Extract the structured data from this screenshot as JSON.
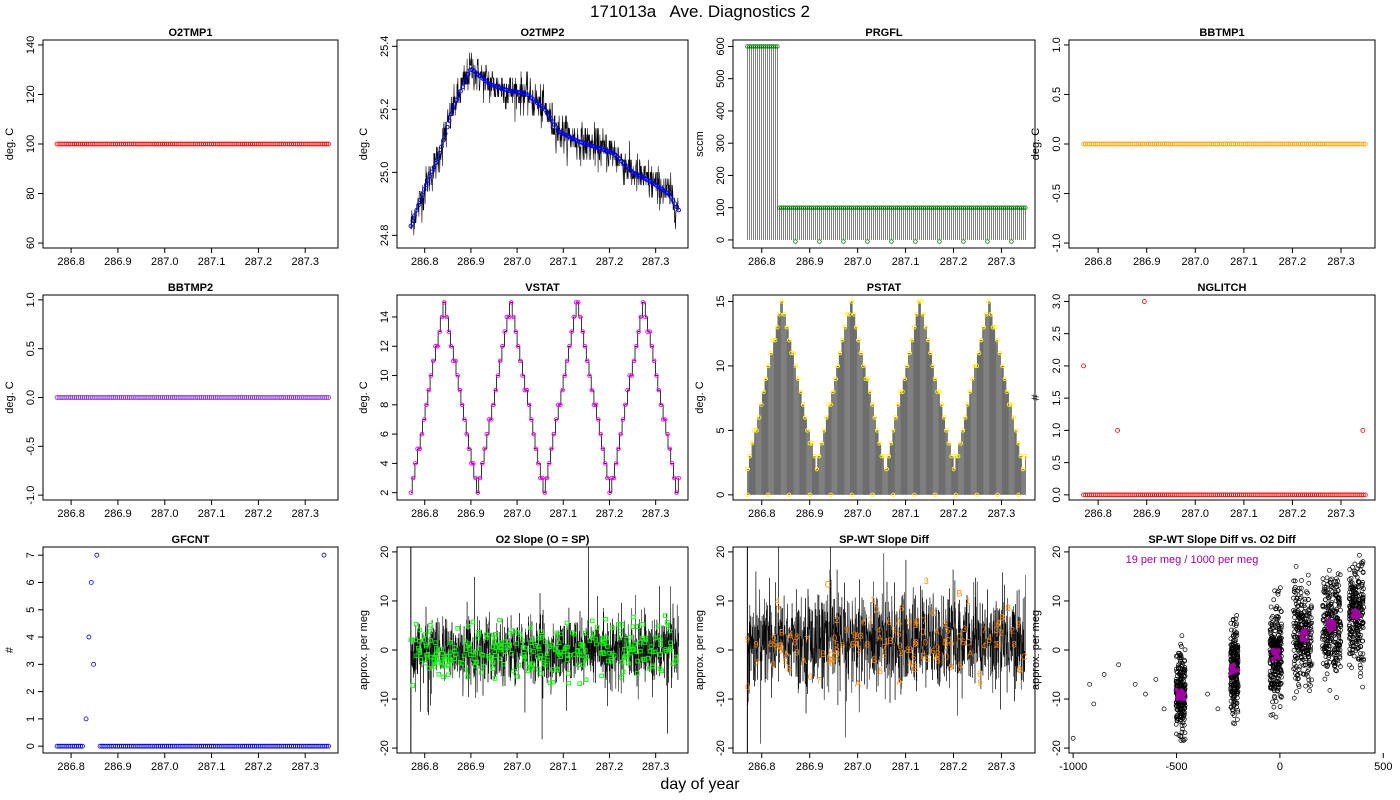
{
  "figure": {
    "title": "171013a   Ave. Diagnostics 2",
    "xlabel": "day of year"
  },
  "chart_data": [
    {
      "id": "o2tmp1",
      "type": "scatter",
      "title": "O2TMP1",
      "ylabel": "deg. C",
      "xlim": [
        286.74,
        287.37
      ],
      "ylim": [
        58,
        142
      ],
      "xticks": [
        286.8,
        286.9,
        287.0,
        287.1,
        287.2,
        287.3
      ],
      "xtick_labels": [
        "286.8",
        "286.9",
        "287.0",
        "287.1",
        "287.2",
        "287.3"
      ],
      "yticks": [
        60,
        80,
        100,
        120,
        140
      ],
      "ytick_labels": [
        "60",
        "80",
        "100",
        "120",
        "140"
      ],
      "series": [
        {
          "color": "#ff0000",
          "points": {
            "x_range": [
              286.77,
              287.35
            ],
            "n": 140,
            "y": 100
          }
        }
      ]
    },
    {
      "id": "o2tmp2",
      "type": "line",
      "title": "O2TMP2",
      "ylabel": "deg. C",
      "xlim": [
        286.74,
        287.37
      ],
      "ylim": [
        24.76,
        25.42
      ],
      "xticks": [
        286.8,
        286.9,
        287.0,
        287.1,
        287.2,
        287.3
      ],
      "xtick_labels": [
        "286.8",
        "286.9",
        "287.0",
        "287.1",
        "287.2",
        "287.3"
      ],
      "yticks": [
        24.8,
        25.0,
        25.2,
        25.4
      ],
      "ytick_labels": [
        "24.8",
        "25.0",
        "25.2",
        "25.4"
      ],
      "series": [
        {
          "color": "#0000ff",
          "profile": [
            [
              286.77,
              24.83
            ],
            [
              286.8,
              24.95
            ],
            [
              286.83,
              25.05
            ],
            [
              286.86,
              25.2
            ],
            [
              286.9,
              25.33
            ],
            [
              286.94,
              25.28
            ],
            [
              286.98,
              25.26
            ],
            [
              287.02,
              25.25
            ],
            [
              287.06,
              25.2
            ],
            [
              287.09,
              25.13
            ],
            [
              287.13,
              25.1
            ],
            [
              287.17,
              25.08
            ],
            [
              287.21,
              25.06
            ],
            [
              287.25,
              25.0
            ],
            [
              287.29,
              24.97
            ],
            [
              287.33,
              24.93
            ],
            [
              287.35,
              24.88
            ]
          ],
          "noise": 0.03
        }
      ]
    },
    {
      "id": "prgfl",
      "type": "bar",
      "title": "PRGFL",
      "ylabel": "sccm",
      "xlim": [
        286.74,
        287.37
      ],
      "ylim": [
        -25,
        620
      ],
      "xticks": [
        286.8,
        286.9,
        287.0,
        287.1,
        287.2,
        287.3
      ],
      "xtick_labels": [
        "286.8",
        "286.9",
        "287.0",
        "287.1",
        "287.2",
        "287.3"
      ],
      "yticks": [
        0,
        100,
        200,
        300,
        400,
        500,
        600
      ],
      "ytick_labels": [
        "0",
        "100",
        "200",
        "300",
        "400",
        "500",
        "600"
      ],
      "series": [
        {
          "color": "#008000",
          "segments": [
            {
              "x": [
                286.77,
                286.835
              ],
              "y": 600
            },
            {
              "x": [
                286.835,
                287.35
              ],
              "y": 100
            }
          ]
        }
      ]
    },
    {
      "id": "bbtmp1",
      "type": "scatter",
      "title": "BBTMP1",
      "ylabel": "deg. C",
      "xlim": [
        286.74,
        287.37
      ],
      "ylim": [
        -1.05,
        1.05
      ],
      "xticks": [
        286.8,
        286.9,
        287.0,
        287.1,
        287.2,
        287.3
      ],
      "xtick_labels": [
        "286.8",
        "286.9",
        "287.0",
        "287.1",
        "287.2",
        "287.3"
      ],
      "yticks": [
        -1.0,
        -0.5,
        0.0,
        0.5,
        1.0
      ],
      "ytick_labels": [
        "-1.0",
        "-0.5",
        "0.0",
        "0.5",
        "1.0"
      ],
      "series": [
        {
          "color": "#ffa500",
          "points": {
            "x_range": [
              286.77,
              287.35
            ],
            "n": 140,
            "y": 0
          }
        }
      ]
    },
    {
      "id": "bbtmp2",
      "type": "scatter",
      "title": "BBTMP2",
      "ylabel": "deg. C",
      "xlim": [
        286.74,
        287.37
      ],
      "ylim": [
        -1.05,
        1.05
      ],
      "xticks": [
        286.8,
        286.9,
        287.0,
        287.1,
        287.2,
        287.3
      ],
      "xtick_labels": [
        "286.8",
        "286.9",
        "287.0",
        "287.1",
        "287.2",
        "287.3"
      ],
      "yticks": [
        -1.0,
        -0.5,
        0.0,
        0.5,
        1.0
      ],
      "ytick_labels": [
        "-1.0",
        "-0.5",
        "0.0",
        "0.5",
        "1.0"
      ],
      "series": [
        {
          "color": "#8a2be2",
          "points": {
            "x_range": [
              286.77,
              287.35
            ],
            "n": 140,
            "y": 0
          }
        }
      ]
    },
    {
      "id": "vstat",
      "type": "line",
      "title": "VSTAT",
      "ylabel": "deg. C",
      "xlim": [
        286.74,
        287.37
      ],
      "ylim": [
        1.5,
        15.5
      ],
      "xticks": [
        286.8,
        286.9,
        287.0,
        287.1,
        287.2,
        287.3
      ],
      "xtick_labels": [
        "286.8",
        "286.9",
        "287.0",
        "287.1",
        "287.2",
        "287.3"
      ],
      "yticks": [
        2,
        4,
        6,
        8,
        10,
        12,
        14
      ],
      "ytick_labels": [
        "2",
        "4",
        "6",
        "8",
        "10",
        "12",
        "14"
      ],
      "series": [
        {
          "color": "#ff00ff",
          "triangle": {
            "x_start": 286.77,
            "x_end": 287.35,
            "min": 2,
            "max": 15,
            "period": 0.144,
            "peaks": [
              286.842,
              286.986,
              287.13,
              287.274
            ]
          }
        }
      ]
    },
    {
      "id": "pstat",
      "type": "bar",
      "title": "PSTAT",
      "ylabel": "deg. C",
      "xlim": [
        286.74,
        287.37
      ],
      "ylim": [
        -0.4,
        15.5
      ],
      "xticks": [
        286.8,
        286.9,
        287.0,
        287.1,
        287.2,
        287.3
      ],
      "xtick_labels": [
        "286.8",
        "286.9",
        "287.0",
        "287.1",
        "287.2",
        "287.3"
      ],
      "yticks": [
        0,
        5,
        10,
        15
      ],
      "ytick_labels": [
        "0",
        "5",
        "10",
        "15"
      ],
      "series": [
        {
          "color": "#ffff00",
          "triangle": {
            "x_start": 286.77,
            "x_end": 287.35,
            "min": 2,
            "max": 15,
            "period": 0.144,
            "peaks": [
              286.842,
              286.986,
              287.13,
              287.274
            ]
          }
        }
      ]
    },
    {
      "id": "nglitch",
      "type": "scatter",
      "title": "NGLITCH",
      "ylabel": "#",
      "xlim": [
        286.74,
        287.37
      ],
      "ylim": [
        -0.08,
        3.1
      ],
      "xticks": [
        286.8,
        286.9,
        287.0,
        287.1,
        287.2,
        287.3
      ],
      "xtick_labels": [
        "286.8",
        "286.9",
        "287.0",
        "287.1",
        "287.2",
        "287.3"
      ],
      "yticks": [
        0.0,
        0.5,
        1.0,
        1.5,
        2.0,
        2.5,
        3.0
      ],
      "ytick_labels": [
        "0.0",
        "0.5",
        "1.0",
        "1.5",
        "2.0",
        "2.5",
        "3.0"
      ],
      "series": [
        {
          "color": "#ff0000",
          "points": {
            "x_range": [
              286.77,
              287.35
            ],
            "n": 140,
            "y": 0
          },
          "outliers": [
            [
              286.77,
              2
            ],
            [
              286.84,
              1
            ],
            [
              286.895,
              3
            ],
            [
              287.345,
              1
            ]
          ]
        }
      ]
    },
    {
      "id": "gfcnt",
      "type": "scatter",
      "title": "GFCNT",
      "ylabel": "#",
      "xlim": [
        286.74,
        287.37
      ],
      "ylim": [
        -0.25,
        7.3
      ],
      "xticks": [
        286.8,
        286.9,
        287.0,
        287.1,
        287.2,
        287.3
      ],
      "xtick_labels": [
        "286.8",
        "286.9",
        "287.0",
        "287.1",
        "287.2",
        "287.3"
      ],
      "yticks": [
        0,
        1,
        2,
        3,
        4,
        5,
        6,
        7
      ],
      "ytick_labels": [
        "0",
        "1",
        "2",
        "3",
        "4",
        "5",
        "6",
        "7"
      ],
      "series": [
        {
          "color": "#0000ff",
          "points": {
            "x_range": [
              286.77,
              287.35
            ],
            "n": 140,
            "y": 0
          },
          "outliers": [
            [
              286.832,
              1
            ],
            [
              286.838,
              4
            ],
            [
              286.843,
              6
            ],
            [
              286.848,
              3
            ],
            [
              286.855,
              7
            ],
            [
              287.34,
              7
            ]
          ]
        }
      ]
    },
    {
      "id": "o2slope",
      "type": "line",
      "title": "O2 Slope (O = SP)",
      "ylabel": "approx. per meg",
      "xlim": [
        286.74,
        287.37
      ],
      "ylim": [
        -21,
        21
      ],
      "xticks": [
        286.8,
        286.9,
        287.0,
        287.1,
        287.2,
        287.3
      ],
      "xtick_labels": [
        "286.8",
        "286.9",
        "287.0",
        "287.1",
        "287.2",
        "287.3"
      ],
      "yticks": [
        -20,
        -10,
        0,
        10,
        20
      ],
      "ytick_labels": [
        "-20",
        "-10",
        "0",
        "10",
        "20"
      ],
      "series": [
        {
          "color": "#00ff00",
          "band": {
            "x_range": [
              286.77,
              287.35
            ],
            "center": 0,
            "halfwidth": 6
          },
          "points": {
            "n": 300,
            "spread": 4
          }
        }
      ]
    },
    {
      "id": "spwt",
      "type": "line",
      "title": "SP-WT Slope Diff",
      "ylabel": "approx. per meg",
      "xlim": [
        286.74,
        287.37
      ],
      "ylim": [
        -21,
        21
      ],
      "xticks": [
        286.8,
        286.9,
        287.0,
        287.1,
        287.2,
        287.3
      ],
      "xtick_labels": [
        "286.8",
        "286.9",
        "287.0",
        "287.1",
        "287.2",
        "287.3"
      ],
      "yticks": [
        -20,
        -10,
        0,
        10,
        20
      ],
      "ytick_labels": [
        "-20",
        "-10",
        "0",
        "10",
        "20"
      ],
      "series": [
        {
          "color": "#ff8c00",
          "band": {
            "x_range": [
              286.77,
              287.35
            ],
            "center": 2,
            "halfwidth": 9
          },
          "labels": {
            "n": 130,
            "chars": "0123456789ABC",
            "spread": 6
          }
        }
      ]
    },
    {
      "id": "spwt_vs_o2",
      "type": "scatter",
      "title": "SP-WT Slope Diff vs. O2 Diff",
      "ylabel": "approx. per meg",
      "annotation": "19 per meg / 1000 per meg",
      "xlim": [
        -1020,
        460
      ],
      "ylim": [
        -21,
        21
      ],
      "xticks": [
        -1000,
        -500,
        0,
        500
      ],
      "xtick_labels": [
        "-1000",
        "-500",
        "0",
        "500"
      ],
      "yticks": [
        -20,
        -10,
        0,
        10,
        20
      ],
      "ytick_labels": [
        "-20",
        "-10",
        "0",
        "10",
        "20"
      ],
      "series": [
        {
          "color": "#000000",
          "clusters": [
            {
              "x": -480,
              "w": 22,
              "c": -9,
              "sd": 4
            },
            {
              "x": -220,
              "w": 18,
              "c": -4,
              "sd": 4
            },
            {
              "x": -20,
              "w": 28,
              "c": -1,
              "sd": 5
            },
            {
              "x": 110,
              "w": 45,
              "c": 3,
              "sd": 5
            },
            {
              "x": 250,
              "w": 45,
              "c": 5,
              "sd": 5
            },
            {
              "x": 370,
              "w": 35,
              "c": 7,
              "sd": 5
            }
          ],
          "stray": [
            [
              -1000,
              -18
            ],
            [
              -920,
              -7
            ],
            [
              -900,
              -11
            ],
            [
              -850,
              -5
            ],
            [
              -780,
              -3
            ],
            [
              -700,
              -7
            ],
            [
              -650,
              -9
            ],
            [
              -600,
              -6
            ],
            [
              -560,
              -12
            ],
            [
              -350,
              -9
            ],
            [
              -300,
              -12
            ]
          ]
        },
        {
          "color": "#a000a0",
          "trend": {
            "x": [
              -480,
              -220,
              -20,
              110,
              250,
              370
            ],
            "y": [
              -9,
              -4,
              -1,
              3,
              5,
              7
            ]
          }
        }
      ]
    }
  ]
}
